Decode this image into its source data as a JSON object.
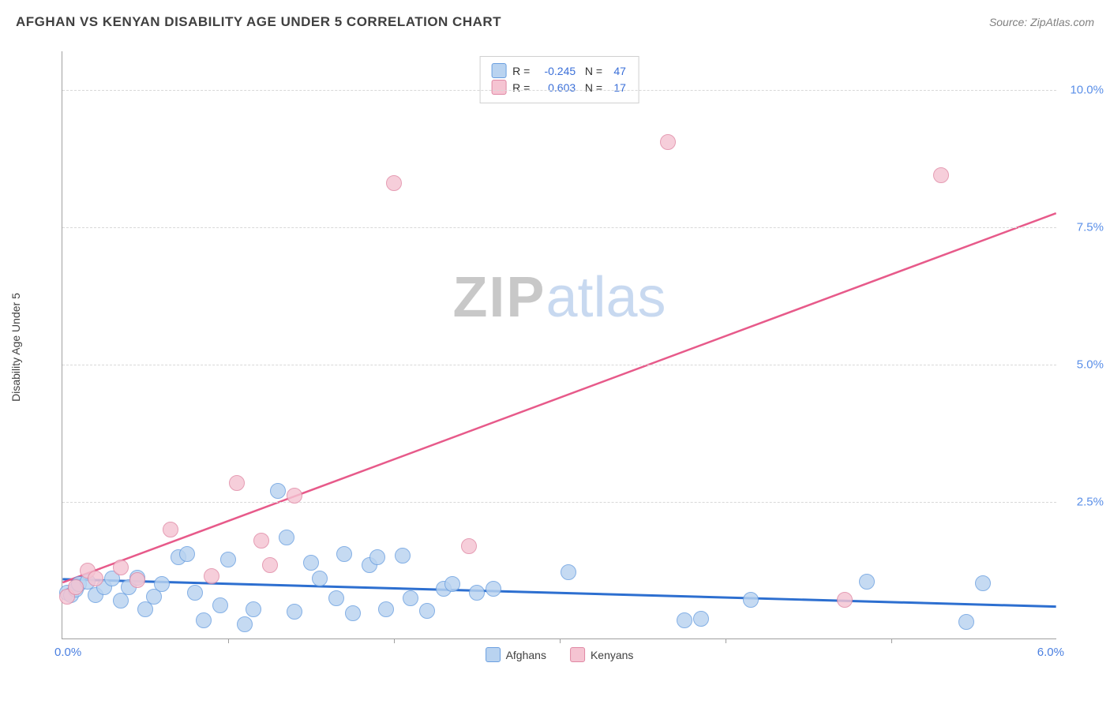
{
  "title": "AFGHAN VS KENYAN DISABILITY AGE UNDER 5 CORRELATION CHART",
  "source_label": "Source: ZipAtlas.com",
  "ylabel": "Disability Age Under 5",
  "watermark": {
    "zip": "ZIP",
    "atlas": "atlas"
  },
  "chart": {
    "type": "scatter",
    "background_color": "#ffffff",
    "grid_color": "#d8d8d8",
    "axis_color": "#a0a0a0",
    "xlim": [
      0.0,
      6.0
    ],
    "ylim": [
      0.0,
      10.7
    ],
    "xtick_labels": {
      "min": "0.0%",
      "max": "6.0%"
    },
    "xtick_color": "#4a7fe0",
    "x_minor_ticks": [
      1.0,
      2.0,
      3.0,
      4.0,
      5.0
    ],
    "ytick_positions": [
      2.5,
      5.0,
      7.5,
      10.0
    ],
    "ytick_labels": [
      "2.5%",
      "5.0%",
      "7.5%",
      "10.0%"
    ],
    "ytick_color": "#5a8fe8",
    "marker_radius": 10,
    "label_fontsize": 14,
    "title_fontsize": 17
  },
  "series": [
    {
      "name": "Afghans",
      "fill": "#b9d3f0",
      "stroke": "#6a9fe0",
      "trend_color": "#2d6fd0",
      "trend_width": 3,
      "R": "-0.245",
      "N": "47",
      "trend": {
        "x1": 0.0,
        "y1": 1.08,
        "x2": 6.0,
        "y2": 0.58
      },
      "points": [
        {
          "x": 0.03,
          "y": 0.85
        },
        {
          "x": 0.05,
          "y": 0.8
        },
        {
          "x": 0.08,
          "y": 0.9
        },
        {
          "x": 0.1,
          "y": 1.0
        },
        {
          "x": 0.15,
          "y": 1.05
        },
        {
          "x": 0.2,
          "y": 0.8
        },
        {
          "x": 0.25,
          "y": 0.95
        },
        {
          "x": 0.3,
          "y": 1.1
        },
        {
          "x": 0.35,
          "y": 0.7
        },
        {
          "x": 0.4,
          "y": 0.95
        },
        {
          "x": 0.45,
          "y": 1.12
        },
        {
          "x": 0.5,
          "y": 0.55
        },
        {
          "x": 0.55,
          "y": 0.78
        },
        {
          "x": 0.6,
          "y": 1.0
        },
        {
          "x": 0.7,
          "y": 1.5
        },
        {
          "x": 0.75,
          "y": 1.55
        },
        {
          "x": 0.8,
          "y": 0.85
        },
        {
          "x": 0.85,
          "y": 0.35
        },
        {
          "x": 0.95,
          "y": 0.62
        },
        {
          "x": 1.0,
          "y": 1.45
        },
        {
          "x": 1.1,
          "y": 0.28
        },
        {
          "x": 1.15,
          "y": 0.55
        },
        {
          "x": 1.3,
          "y": 2.7
        },
        {
          "x": 1.35,
          "y": 1.85
        },
        {
          "x": 1.4,
          "y": 0.5
        },
        {
          "x": 1.5,
          "y": 1.4
        },
        {
          "x": 1.55,
          "y": 1.1
        },
        {
          "x": 1.65,
          "y": 0.75
        },
        {
          "x": 1.7,
          "y": 1.55
        },
        {
          "x": 1.75,
          "y": 0.48
        },
        {
          "x": 1.85,
          "y": 1.35
        },
        {
          "x": 1.9,
          "y": 1.5
        },
        {
          "x": 1.95,
          "y": 0.55
        },
        {
          "x": 2.05,
          "y": 1.52
        },
        {
          "x": 2.1,
          "y": 0.75
        },
        {
          "x": 2.2,
          "y": 0.52
        },
        {
          "x": 2.3,
          "y": 0.92
        },
        {
          "x": 2.35,
          "y": 1.0
        },
        {
          "x": 2.5,
          "y": 0.85
        },
        {
          "x": 2.6,
          "y": 0.92
        },
        {
          "x": 3.05,
          "y": 1.22
        },
        {
          "x": 3.75,
          "y": 0.35
        },
        {
          "x": 3.85,
          "y": 0.38
        },
        {
          "x": 4.15,
          "y": 0.72
        },
        {
          "x": 4.85,
          "y": 1.05
        },
        {
          "x": 5.45,
          "y": 0.32
        },
        {
          "x": 5.55,
          "y": 1.02
        }
      ]
    },
    {
      "name": "Kenyans",
      "fill": "#f5c4d2",
      "stroke": "#e088a4",
      "trend_color": "#e75a8a",
      "trend_width": 2.5,
      "R": "0.603",
      "N": "17",
      "trend": {
        "x1": 0.0,
        "y1": 1.02,
        "x2": 6.0,
        "y2": 7.75
      },
      "points": [
        {
          "x": 0.03,
          "y": 0.78
        },
        {
          "x": 0.08,
          "y": 0.95
        },
        {
          "x": 0.15,
          "y": 1.25
        },
        {
          "x": 0.2,
          "y": 1.1
        },
        {
          "x": 0.35,
          "y": 1.3
        },
        {
          "x": 0.45,
          "y": 1.08
        },
        {
          "x": 0.65,
          "y": 2.0
        },
        {
          "x": 0.9,
          "y": 1.15
        },
        {
          "x": 1.05,
          "y": 2.85
        },
        {
          "x": 1.2,
          "y": 1.8
        },
        {
          "x": 1.25,
          "y": 1.35
        },
        {
          "x": 1.4,
          "y": 2.62
        },
        {
          "x": 2.0,
          "y": 8.3
        },
        {
          "x": 2.45,
          "y": 1.7
        },
        {
          "x": 3.65,
          "y": 9.05
        },
        {
          "x": 4.72,
          "y": 0.72
        },
        {
          "x": 5.3,
          "y": 8.45
        }
      ]
    }
  ],
  "legend_bottom": [
    {
      "label": "Afghans",
      "fill": "#b9d3f0",
      "stroke": "#6a9fe0"
    },
    {
      "label": "Kenyans",
      "fill": "#f5c4d2",
      "stroke": "#e088a4"
    }
  ]
}
